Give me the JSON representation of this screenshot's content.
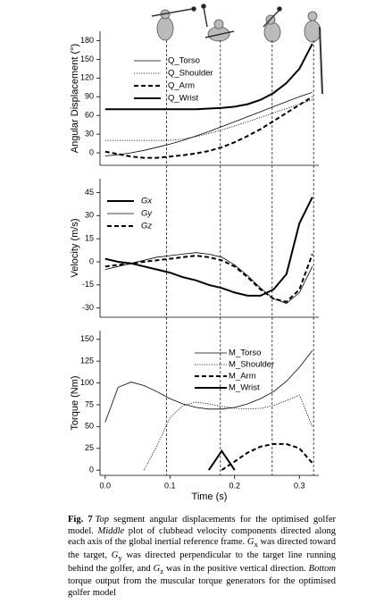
{
  "chart_data": [
    {
      "type": "line",
      "ylabel": "Angular Displacement (°)",
      "legend": "upper left",
      "x": [
        0,
        0.02,
        0.04,
        0.06,
        0.08,
        0.1,
        0.12,
        0.14,
        0.16,
        0.18,
        0.2,
        0.22,
        0.24,
        0.26,
        0.28,
        0.3,
        0.32
      ],
      "xlim": [
        -0.008,
        0.33
      ],
      "ylim": [
        -20,
        195
      ],
      "yticks": [
        0,
        30,
        60,
        90,
        120,
        150,
        180
      ],
      "series": [
        {
          "name": "Q_Torso",
          "color": "#000000",
          "style": "thin",
          "values": [
            -5,
            -3,
            0,
            4,
            9,
            14,
            20,
            27,
            34,
            42,
            50,
            58,
            66,
            74,
            82,
            90,
            97
          ]
        },
        {
          "name": "Q_Shoulder",
          "color": "#000000",
          "style": "dotted",
          "values": [
            20,
            20,
            20,
            20,
            20,
            20,
            22,
            26,
            31,
            37,
            43,
            50,
            57,
            64,
            71,
            78,
            85
          ]
        },
        {
          "name": "Q_Arm",
          "color": "#000000",
          "style": "dashed",
          "values": [
            2,
            -2,
            -6,
            -8,
            -8,
            -6,
            -4,
            -1,
            3,
            9,
            17,
            27,
            38,
            51,
            64,
            77,
            90
          ]
        },
        {
          "name": "Q_Wrist",
          "color": "#000000",
          "style": "thick",
          "values": [
            70,
            70,
            70,
            70,
            70,
            70,
            70,
            70,
            71,
            72,
            74,
            78,
            85,
            96,
            112,
            135,
            175
          ]
        }
      ]
    },
    {
      "type": "line",
      "ylabel": "Velocity (m/s)",
      "legend": "upper left",
      "x": [
        0,
        0.02,
        0.04,
        0.06,
        0.08,
        0.1,
        0.12,
        0.14,
        0.16,
        0.18,
        0.2,
        0.22,
        0.24,
        0.26,
        0.28,
        0.3,
        0.32
      ],
      "xlim": [
        -0.008,
        0.33
      ],
      "ylim": [
        -36,
        54
      ],
      "yticks": [
        -30,
        -15,
        0,
        15,
        30,
        45
      ],
      "series": [
        {
          "name": "Gx",
          "color": "#000000",
          "style": "thick",
          "values": [
            2,
            0,
            -1,
            -3,
            -5,
            -7,
            -10,
            -12,
            -15,
            -17,
            -20,
            -22,
            -22,
            -18,
            -8,
            25,
            42
          ]
        },
        {
          "name": "Gy",
          "color": "#000000",
          "style": "thin",
          "values": [
            -5,
            -3,
            -1,
            1,
            3,
            4,
            5,
            6,
            5,
            3,
            -2,
            -9,
            -17,
            -24,
            -27,
            -20,
            -3
          ]
        },
        {
          "name": "Gz",
          "color": "#000000",
          "style": "dashed",
          "values": [
            -3,
            -2,
            -1,
            0,
            1,
            2,
            3,
            4,
            3,
            1,
            -3,
            -10,
            -18,
            -24,
            -26,
            -18,
            5
          ]
        }
      ]
    },
    {
      "type": "line",
      "ylabel": "Torque (Nm)",
      "xlabel": "Time (s)",
      "legend": "upper right",
      "x": [
        0,
        0.02,
        0.04,
        0.06,
        0.08,
        0.1,
        0.12,
        0.14,
        0.16,
        0.18,
        0.2,
        0.22,
        0.24,
        0.26,
        0.28,
        0.3,
        0.32
      ],
      "xlim": [
        -0.008,
        0.33
      ],
      "ylim": [
        -6,
        160
      ],
      "yticks": [
        0,
        25,
        50,
        75,
        100,
        125,
        150
      ],
      "xticks": [
        {
          "value": 0,
          "label": "0.0"
        },
        {
          "value": 0.1,
          "label": "0.1"
        },
        {
          "value": 0.2,
          "label": "0.2"
        },
        {
          "value": 0.3,
          "label": "0.3"
        }
      ],
      "series": [
        {
          "name": "M_Torso",
          "color": "#000000",
          "style": "thin",
          "values": [
            55,
            95,
            101,
            97,
            90,
            82,
            76,
            72,
            70,
            70,
            72,
            76,
            82,
            90,
            102,
            118,
            137
          ]
        },
        {
          "name": "M_Shoulder",
          "color": "#000000",
          "style": "dotted",
          "values": [
            null,
            null,
            null,
            0,
            28,
            60,
            74,
            78,
            76,
            73,
            71,
            70,
            71,
            74,
            80,
            86,
            50
          ]
        },
        {
          "name": "M_Arm",
          "color": "#000000",
          "style": "dashed",
          "values": [
            null,
            null,
            null,
            null,
            null,
            null,
            null,
            null,
            null,
            0,
            10,
            20,
            27,
            30,
            30,
            25,
            8
          ]
        },
        {
          "name": "M_Wrist",
          "color": "#000000",
          "style": "thick",
          "values": [
            null,
            null,
            null,
            null,
            null,
            null,
            null,
            null,
            0,
            22,
            0,
            null,
            null,
            null,
            null,
            null,
            null
          ]
        }
      ]
    }
  ],
  "event_times": [
    0.095,
    0.178,
    0.258,
    0.322
  ],
  "caption": [
    "Fig. 7",
    "Top",
    " segment angular displacements for the optimised golfer model. ",
    "Middle",
    " plot of clubhead velocity components directed along each axis of the global inertial reference frame. ",
    "G",
    "x",
    " was directed toward the target, ",
    "G",
    "y",
    " was directed perpendicular to the target line running behind the golfer, and ",
    "G",
    "z",
    " was in the positive vertical direction. ",
    "Bottom",
    " torque output from the muscular torque generators for the optimised golfer model"
  ]
}
